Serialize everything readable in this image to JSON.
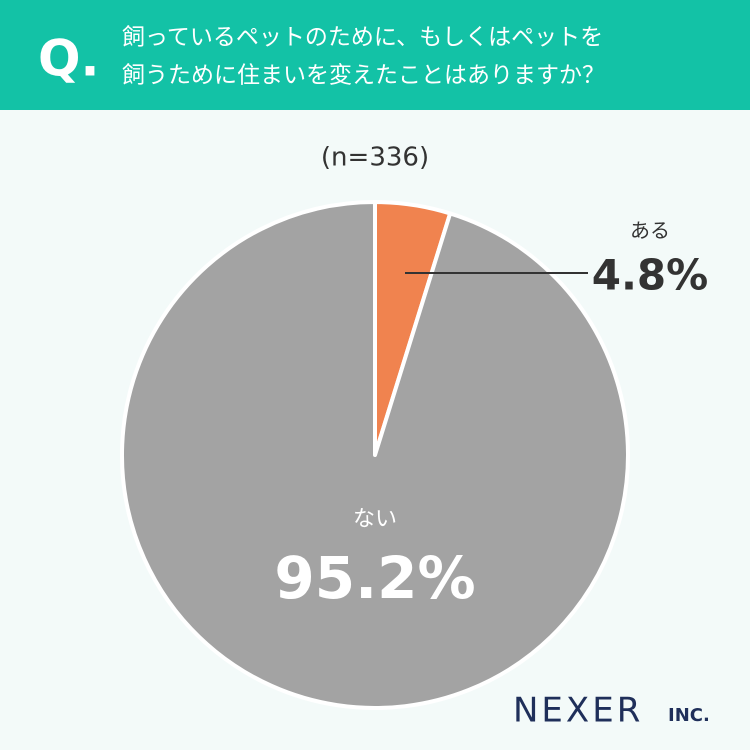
{
  "header": {
    "label": "Q."
  },
  "chart_data": {
    "type": "pie",
    "title": [
      "飼っているペットのために、もしくはペットを",
      "飼うために住まいを変えたことはありますか？"
    ],
    "subtitle": "(n=336)",
    "categories": [
      "ある",
      "ない"
    ],
    "values": [
      4.8,
      95.2
    ],
    "value_labels": [
      "4.8%",
      "95.2%"
    ],
    "colors": [
      "#f0834f",
      "#a3a3a3"
    ]
  },
  "logo": {
    "name": "NEXER",
    "suffix": "INC."
  }
}
